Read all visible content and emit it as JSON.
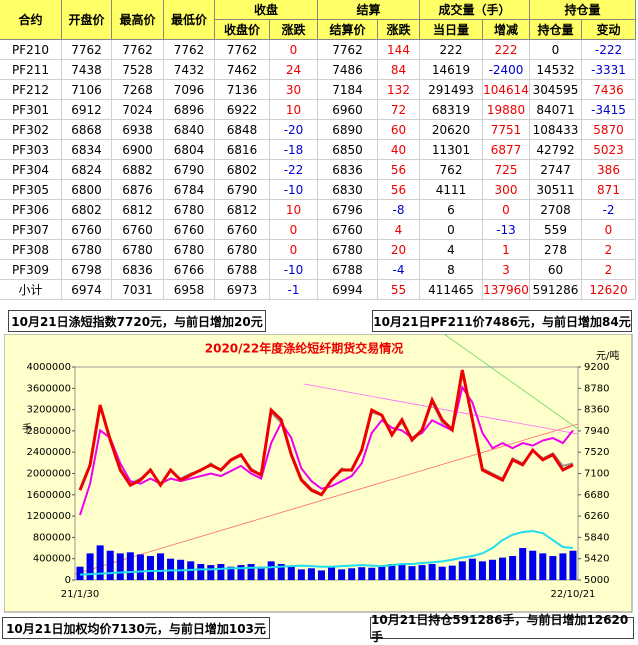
{
  "table": {
    "header_top": [
      "合约",
      "开盘价",
      "最高价",
      "最低价",
      "收盘",
      "结算",
      "成交量（手）",
      "持仓量"
    ],
    "header_sub": [
      "收盘价",
      "涨跌",
      "结算价",
      "涨跌",
      "当日量",
      "增减",
      "持仓量",
      "变动"
    ],
    "rows": [
      [
        "PF210",
        7762,
        7762,
        7762,
        7762,
        0,
        7762,
        144,
        222,
        222,
        0,
        -222
      ],
      [
        "PF211",
        7438,
        7528,
        7432,
        7462,
        24,
        7486,
        84,
        14619,
        -2400,
        14532,
        -3331
      ],
      [
        "PF212",
        7106,
        7268,
        7096,
        7136,
        30,
        7184,
        132,
        291493,
        104614,
        304595,
        7436
      ],
      [
        "PF301",
        6912,
        7024,
        6896,
        6922,
        10,
        6960,
        72,
        68319,
        19880,
        84071,
        -3415
      ],
      [
        "PF302",
        6868,
        6938,
        6840,
        6848,
        -20,
        6890,
        60,
        20620,
        7751,
        108433,
        5870
      ],
      [
        "PF303",
        6834,
        6900,
        6804,
        6816,
        -18,
        6850,
        40,
        11301,
        6877,
        42792,
        5023
      ],
      [
        "PF304",
        6824,
        6882,
        6790,
        6802,
        -22,
        6836,
        56,
        762,
        725,
        2747,
        386
      ],
      [
        "PF305",
        6800,
        6876,
        6784,
        6790,
        -10,
        6830,
        56,
        4111,
        300,
        30511,
        871
      ],
      [
        "PF306",
        6802,
        6812,
        6780,
        6812,
        10,
        6796,
        -8,
        6,
        0,
        2708,
        -2
      ],
      [
        "PF307",
        6760,
        6760,
        6760,
        6760,
        0,
        6760,
        4,
        0,
        -13,
        559,
        0
      ],
      [
        "PF308",
        6780,
        6780,
        6780,
        6780,
        0,
        6780,
        20,
        4,
        1,
        278,
        2
      ],
      [
        "PF309",
        6798,
        6836,
        6766,
        6788,
        -10,
        6788,
        -4,
        8,
        3,
        60,
        2
      ],
      [
        "小计",
        6974,
        7031,
        6958,
        6973,
        -1,
        6994,
        55,
        411465,
        137960,
        591286,
        12620
      ]
    ]
  },
  "banners": [
    "10月21日涤短指数7720元，与前日增加20元",
    "10月21日PF211价7486元，与前日增加84元",
    "10月21日加权均价7130元，与前日增加103元",
    "10月21日持仓591286手，与前日增加12620手"
  ],
  "chart_data": {
    "type": "combo",
    "title": "2020/22年度涤纶短纤期货交易情况",
    "y_unit": "手",
    "y2_unit": "元/吨",
    "categories": [
      "21/1/30",
      null,
      null,
      null,
      null,
      null,
      null,
      null,
      null,
      null,
      null,
      null,
      null,
      null,
      null,
      null,
      null,
      null,
      null,
      null,
      null,
      null,
      null,
      null,
      null,
      null,
      null,
      null,
      null,
      null,
      null,
      null,
      null,
      null,
      null,
      null,
      null,
      null,
      null,
      null,
      null,
      null,
      null,
      null,
      null,
      null,
      null,
      null,
      null,
      "22/10/21"
    ],
    "ylim": [
      0,
      4000000
    ],
    "yticks": [
      0,
      400000,
      800000,
      1200000,
      1600000,
      2000000,
      2400000,
      2800000,
      3200000,
      3600000,
      4000000
    ],
    "y2lim": [
      5000,
      9200
    ],
    "y2ticks": [
      5000,
      5420,
      5840,
      6260,
      6680,
      7100,
      7520,
      7940,
      8360,
      8780,
      9200
    ],
    "series": [
      {
        "type": "bar",
        "color": "#0000ee",
        "values": [
          250000,
          500000,
          650000,
          550000,
          500000,
          520000,
          480000,
          450000,
          500000,
          400000,
          380000,
          350000,
          300000,
          280000,
          300000,
          250000,
          280000,
          300000,
          250000,
          350000,
          300000,
          250000,
          200000,
          220000,
          180000,
          250000,
          200000,
          220000,
          240000,
          230000,
          260000,
          300000,
          280000,
          260000,
          280000,
          300000,
          250000,
          270000,
          350000,
          400000,
          350000,
          380000,
          420000,
          450000,
          600000,
          550000,
          500000,
          450000,
          500000,
          550000
        ]
      },
      {
        "type": "line",
        "color": "#22ddee",
        "values": [
          100000,
          110000,
          120000,
          130000,
          140000,
          150000,
          160000,
          170000,
          170000,
          180000,
          180000,
          190000,
          200000,
          200000,
          210000,
          220000,
          220000,
          230000,
          230000,
          240000,
          250000,
          260000,
          270000,
          260000,
          250000,
          250000,
          260000,
          270000,
          280000,
          270000,
          260000,
          280000,
          300000,
          300000,
          320000,
          330000,
          350000,
          380000,
          420000,
          450000,
          500000,
          600000,
          750000,
          850000,
          900000,
          920000,
          880000,
          750000,
          620000,
          600000
        ]
      },
      {
        "type": "line",
        "axis": "y2",
        "color": "#999999",
        "values": [
          6800,
          7250,
          8400,
          7800,
          7200,
          6900,
          7000,
          7150,
          6900,
          7150,
          7000,
          7100,
          7150,
          7300,
          7150,
          7350,
          7450,
          7200,
          7050,
          8300,
          8100,
          7500,
          7000,
          6800,
          6700,
          6950,
          7200,
          7150,
          7550,
          8300,
          8250,
          7900,
          8100,
          7800,
          7950,
          8500,
          8100,
          8000,
          9100,
          8200,
          7200,
          7100,
          7000,
          7400,
          7300,
          7550,
          7400,
          7500,
          7250,
          7300
        ]
      },
      {
        "type": "line",
        "axis": "y2",
        "color": "#ee00ee",
        "values": [
          6280,
          6900,
          7950,
          7800,
          7300,
          6950,
          6900,
          7000,
          6900,
          7000,
          6950,
          7000,
          7050,
          7100,
          7050,
          7150,
          7250,
          7100,
          7000,
          7700,
          8100,
          7800,
          7200,
          6950,
          6800,
          6850,
          6950,
          7050,
          7300,
          7900,
          8150,
          8000,
          7950,
          7800,
          7900,
          8150,
          8050,
          7950,
          8800,
          8500,
          7900,
          7600,
          7700,
          7600,
          7700,
          7650,
          7750,
          7800,
          7700,
          7950
        ]
      },
      {
        "type": "line",
        "axis": "y2",
        "color": "#ee0000",
        "values": [
          6770,
          7270,
          8450,
          7760,
          7170,
          6870,
          6970,
          7170,
          6870,
          7170,
          6970,
          7070,
          7170,
          7270,
          7170,
          7370,
          7470,
          7170,
          7070,
          8350,
          8160,
          7470,
          6970,
          6770,
          6680,
          6970,
          7170,
          7170,
          7560,
          8350,
          8250,
          7860,
          8160,
          7760,
          7960,
          8550,
          8160,
          7960,
          9140,
          8160,
          7170,
          7070,
          6970,
          7370,
          7270,
          7560,
          7370,
          7470,
          7170,
          7270
        ]
      }
    ]
  }
}
